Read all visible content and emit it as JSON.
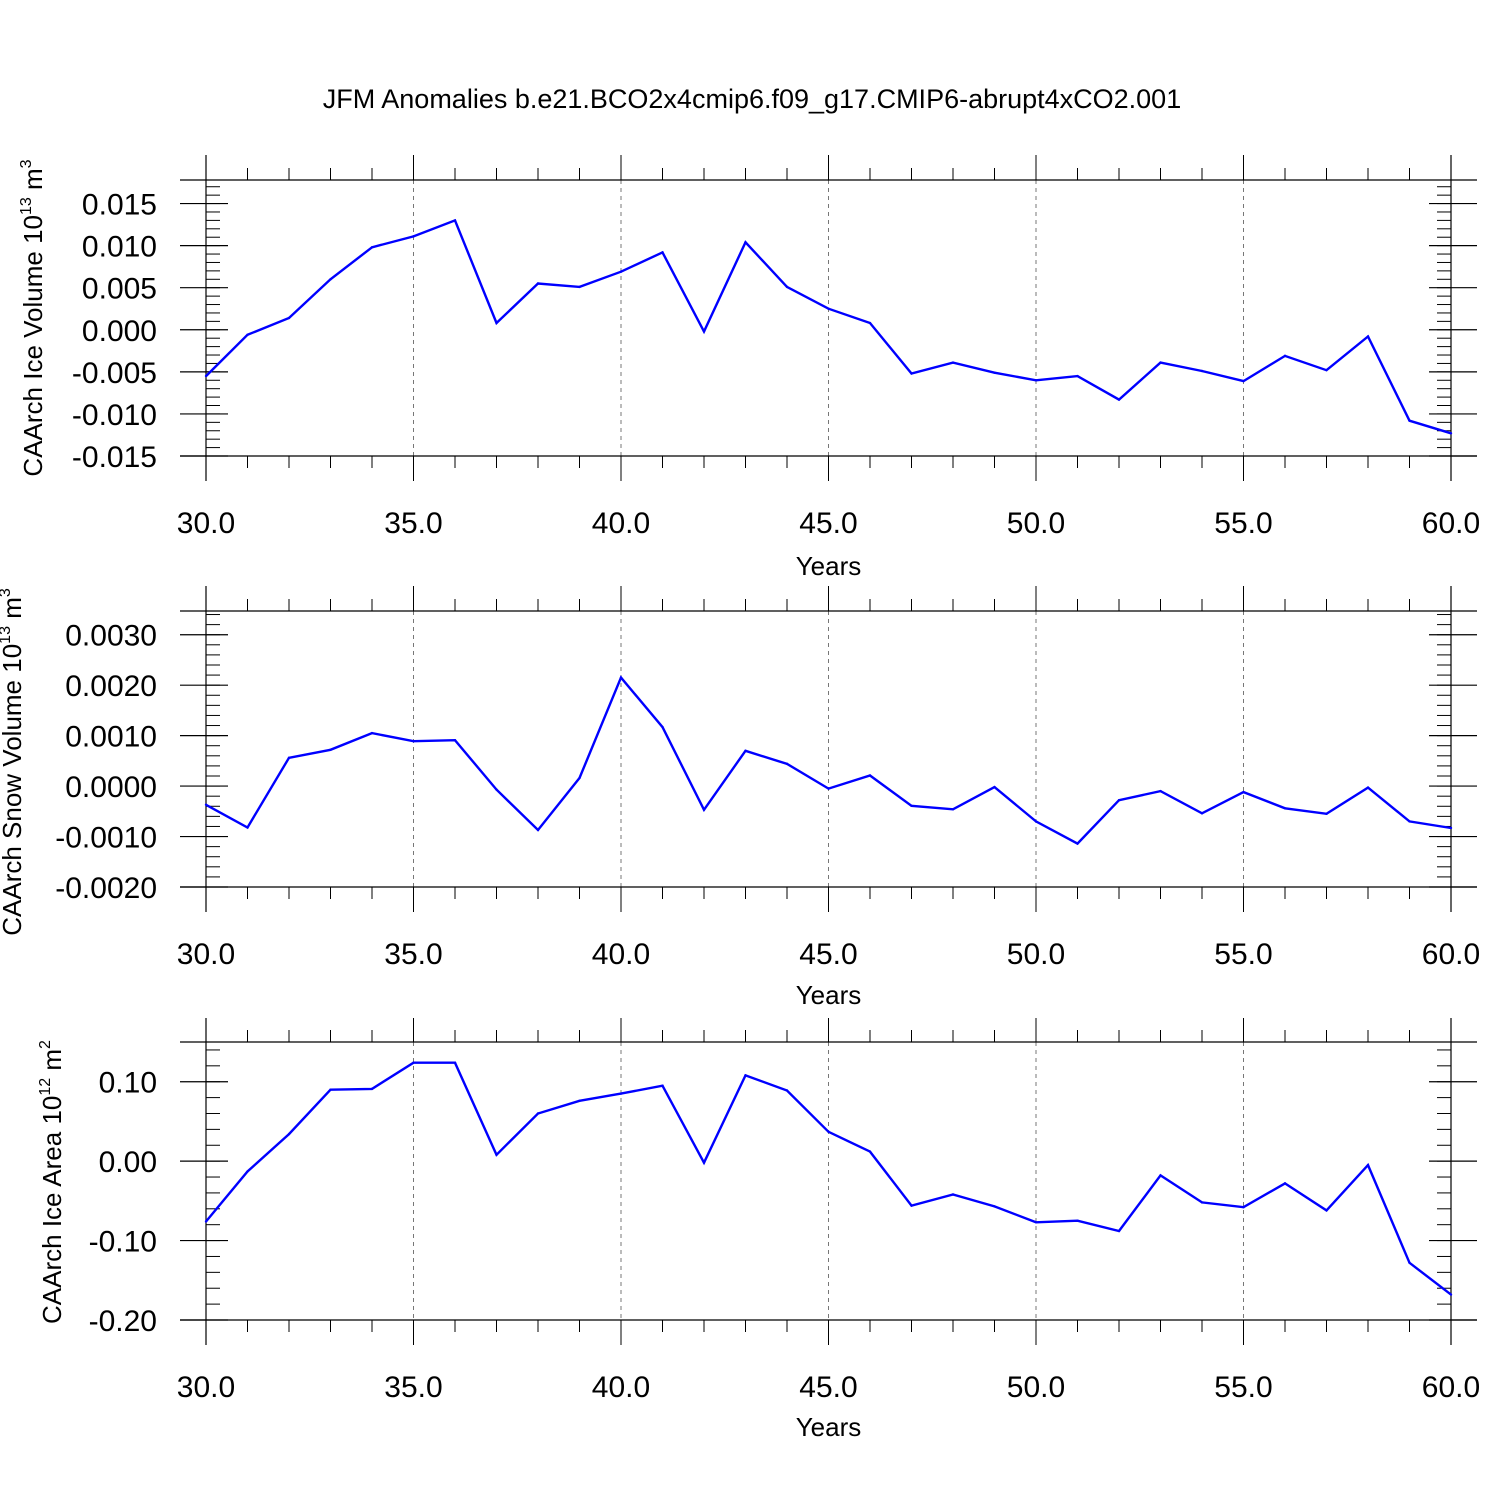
{
  "figure": {
    "title": "JFM Anomalies b.e21.BCO2x4cmip6.f09_g17.CMIP6-abrupt4xCO2.001"
  },
  "chart_data": [
    {
      "type": "line",
      "ylabel": "CAArch Ice Volume 10",
      "ylabel_exp": "13",
      "ylabel_unit": " m",
      "ylabel_unit_exp": "3",
      "xlabel": "Years",
      "xlim": [
        30,
        60
      ],
      "ylim": [
        -0.015,
        0.0178
      ],
      "x_ticks": [
        30,
        35,
        40,
        45,
        50,
        55,
        60
      ],
      "x_tick_labels": [
        "30.0",
        "35.0",
        "40.0",
        "45.0",
        "50.0",
        "55.0",
        "60.0"
      ],
      "y_ticks": [
        -0.015,
        -0.01,
        -0.005,
        0.0,
        0.005,
        0.01,
        0.015
      ],
      "y_tick_labels": [
        "-0.015",
        "-0.010",
        "-0.005",
        "0.000",
        "0.005",
        "0.010",
        "0.015"
      ],
      "y_minor_step": 0.001,
      "grid": "vertical dashed at major x ticks",
      "line_color": "#0000ff",
      "x": [
        30,
        31,
        32,
        33,
        34,
        35,
        36,
        37,
        38,
        39,
        40,
        41,
        42,
        43,
        44,
        45,
        46,
        47,
        48,
        49,
        50,
        51,
        52,
        53,
        54,
        55,
        56,
        57,
        58,
        59,
        60
      ],
      "values": [
        -0.0055,
        -0.0006,
        0.0014,
        0.006,
        0.0098,
        0.0111,
        0.013,
        0.0008,
        0.0055,
        0.0051,
        0.0069,
        0.0092,
        -0.0002,
        0.0104,
        0.0051,
        0.0025,
        0.0008,
        -0.0052,
        -0.0039,
        -0.0051,
        -0.006,
        -0.0055,
        -0.0083,
        -0.0039,
        -0.0049,
        -0.0061,
        -0.0031,
        -0.0048,
        -0.0008,
        -0.0108,
        -0.0123
      ]
    },
    {
      "type": "line",
      "ylabel": "CAArch Snow Volume 10",
      "ylabel_exp": "13",
      "ylabel_unit": " m",
      "ylabel_unit_exp": "3",
      "xlabel": "Years",
      "xlim": [
        30,
        60
      ],
      "ylim": [
        -0.002,
        0.00347
      ],
      "x_ticks": [
        30,
        35,
        40,
        45,
        50,
        55,
        60
      ],
      "x_tick_labels": [
        "30.0",
        "35.0",
        "40.0",
        "45.0",
        "50.0",
        "55.0",
        "60.0"
      ],
      "y_ticks": [
        -0.002,
        -0.001,
        0.0,
        0.001,
        0.002,
        0.003
      ],
      "y_tick_labels": [
        "-0.0020",
        "-0.0010",
        "0.0000",
        "0.0010",
        "0.0020",
        "0.0030"
      ],
      "y_minor_step": 0.0002,
      "grid": "vertical dashed at major x ticks",
      "line_color": "#0000ff",
      "x": [
        30,
        31,
        32,
        33,
        34,
        35,
        36,
        37,
        38,
        39,
        40,
        41,
        42,
        43,
        44,
        45,
        46,
        47,
        48,
        49,
        50,
        51,
        52,
        53,
        54,
        55,
        56,
        57,
        58,
        59,
        60
      ],
      "values": [
        -0.00037,
        -0.00082,
        0.00056,
        0.00072,
        0.00105,
        0.00089,
        0.00091,
        -7e-05,
        -0.00087,
        0.00016,
        0.00215,
        0.00117,
        -0.00047,
        0.0007,
        0.00044,
        -5e-05,
        0.00021,
        -0.00039,
        -0.00046,
        -2e-05,
        -0.0007,
        -0.00114,
        -0.00028,
        -0.0001,
        -0.00054,
        -0.00012,
        -0.00044,
        -0.00055,
        -3e-05,
        -0.0007,
        -0.00083
      ]
    },
    {
      "type": "line",
      "ylabel": "CAArch Ice Area 10",
      "ylabel_exp": "12",
      "ylabel_unit": " m",
      "ylabel_unit_exp": "2",
      "xlabel": "Years",
      "xlim": [
        30,
        60
      ],
      "ylim": [
        -0.2,
        0.15
      ],
      "x_ticks": [
        30,
        35,
        40,
        45,
        50,
        55,
        60
      ],
      "x_tick_labels": [
        "30.0",
        "35.0",
        "40.0",
        "45.0",
        "50.0",
        "55.0",
        "60.0"
      ],
      "y_ticks": [
        -0.2,
        -0.1,
        0.0,
        0.1
      ],
      "y_tick_labels": [
        "-0.20",
        "-0.10",
        "0.00",
        "0.10"
      ],
      "y_minor_step": 0.02,
      "grid": "vertical dashed at major x ticks",
      "line_color": "#0000ff",
      "x": [
        30,
        31,
        32,
        33,
        34,
        35,
        36,
        37,
        38,
        39,
        40,
        41,
        42,
        43,
        44,
        45,
        46,
        47,
        48,
        49,
        50,
        51,
        52,
        53,
        54,
        55,
        56,
        57,
        58,
        59,
        60
      ],
      "values": [
        -0.076,
        -0.013,
        0.034,
        0.09,
        0.091,
        0.124,
        0.124,
        0.008,
        0.06,
        0.076,
        0.085,
        0.095,
        -0.002,
        0.108,
        0.089,
        0.037,
        0.012,
        -0.056,
        -0.042,
        -0.057,
        -0.077,
        -0.075,
        -0.088,
        -0.018,
        -0.052,
        -0.058,
        -0.028,
        -0.062,
        -0.005,
        -0.128,
        -0.168
      ]
    }
  ]
}
